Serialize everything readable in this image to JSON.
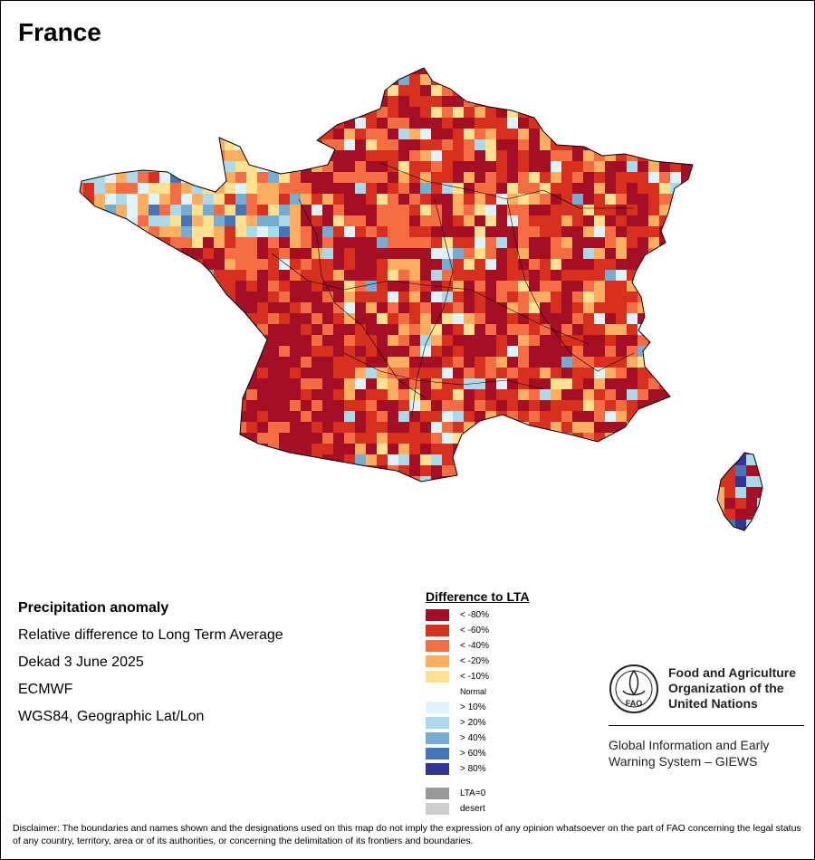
{
  "title": "France",
  "meta": {
    "heading": "Precipitation anomaly",
    "line1": "Relative difference to Long Term Average",
    "line2": "Dekad 3 June 2025",
    "line3": "ECMWF",
    "line4": "WGS84, Geographic Lat/Lon"
  },
  "legend": {
    "title": "Difference to LTA",
    "items": [
      {
        "label": "< -80%",
        "color": "#a50f26"
      },
      {
        "label": "< -60%",
        "color": "#d7301f"
      },
      {
        "label": "< -40%",
        "color": "#f46d43"
      },
      {
        "label": "< -20%",
        "color": "#fdae61"
      },
      {
        "label": "< -10%",
        "color": "#fee090"
      },
      {
        "label": "Normal",
        "color": "#ffffff"
      },
      {
        "label": "> 10%",
        "color": "#e0f3f8"
      },
      {
        "label": "> 20%",
        "color": "#abd9e9"
      },
      {
        "label": "> 40%",
        "color": "#74add1"
      },
      {
        "label": "> 60%",
        "color": "#4575b4"
      },
      {
        "label": "> 80%",
        "color": "#313695"
      }
    ],
    "extra": [
      {
        "label": "LTA=0",
        "color": "#999999"
      },
      {
        "label": "desert",
        "color": "#cccccc"
      }
    ]
  },
  "fao": {
    "logo_text": "FAO",
    "org_line1": "Food and Agriculture",
    "org_line2": "Organization of the",
    "org_line3": "United Nations",
    "giews_line1": "Global Information and Early",
    "giews_line2": "Warning System – GIEWS"
  },
  "disclaimer": "Disclaimer: The boundaries and names shown and the designations used on this map do not imply the expression of any opinion whatsoever on the part of FAO concerning the legal status of any country, territory, area or of its authorities, or concerning the delimitation of its frontiers and boundaries."
}
